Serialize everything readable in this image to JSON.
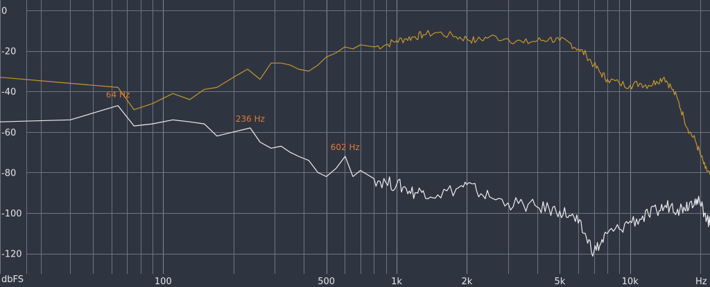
{
  "chart_data": {
    "type": "line",
    "title": "",
    "xlabel": "Hz",
    "ylabel": "dbFS",
    "x_scale": "log",
    "xlim": [
      20,
      22000
    ],
    "ylim": [
      -130,
      0
    ],
    "grid": true,
    "y_ticks": [
      0,
      -20,
      -40,
      -60,
      -80,
      -100,
      -120
    ],
    "x_tick_labels": [
      {
        "value": 100,
        "label": "100"
      },
      {
        "value": 500,
        "label": "500"
      },
      {
        "value": 1000,
        "label": "1k"
      },
      {
        "value": 2000,
        "label": "2k"
      },
      {
        "value": 5000,
        "label": "5k"
      },
      {
        "value": 10000,
        "label": "10k"
      }
    ],
    "colors": {
      "background": "#2f3540",
      "grid": "#6f7680",
      "text": "#e3e6ea",
      "peak_label": "#e0793a"
    },
    "annotations": [
      {
        "text": "64 Hz",
        "x": 64,
        "y": -43
      },
      {
        "text": "236 Hz",
        "x": 236,
        "y": -55
      },
      {
        "text": "602 Hz",
        "x": 602,
        "y": -69
      }
    ],
    "series": [
      {
        "color": "#c8972f",
        "x": [
          20,
          40,
          64,
          75,
          90,
          110,
          130,
          150,
          170,
          200,
          230,
          260,
          290,
          320,
          350,
          380,
          420,
          460,
          500,
          550,
          600,
          650,
          700,
          800,
          900,
          1000,
          1100,
          1200,
          1300,
          1500,
          1800,
          2000,
          2200,
          2500,
          3000,
          3500,
          4000,
          4500,
          5000,
          5500,
          6000,
          6500,
          7000,
          7500,
          8000,
          9000,
          10000,
          11000,
          12000,
          13000,
          14000,
          15000,
          16000,
          17000,
          18000,
          19000,
          20000,
          21000,
          22000
        ],
        "y": [
          -33,
          -36,
          -38,
          -49,
          -46,
          -41,
          -44,
          -39,
          -38,
          -33,
          -29,
          -34,
          -26,
          -26,
          -27,
          -29,
          -30,
          -27,
          -23,
          -21,
          -18,
          -19,
          -17,
          -18,
          -17,
          -15,
          -14,
          -13,
          -12,
          -11,
          -13,
          -14,
          -15,
          -13,
          -14,
          -16,
          -15,
          -14,
          -15,
          -16,
          -19,
          -22,
          -27,
          -31,
          -34,
          -36,
          -37,
          -36,
          -37,
          -35,
          -33,
          -38,
          -44,
          -53,
          -60,
          -64,
          -71,
          -78,
          -81
        ]
      },
      {
        "color": "#eef0f2",
        "x": [
          20,
          40,
          64,
          75,
          90,
          110,
          130,
          150,
          170,
          200,
          236,
          260,
          290,
          320,
          350,
          380,
          420,
          460,
          500,
          550,
          602,
          650,
          700,
          800,
          900,
          1000,
          1100,
          1200,
          1300,
          1500,
          1800,
          2000,
          2200,
          2500,
          3000,
          3500,
          4000,
          4500,
          5000,
          5500,
          6000,
          6500,
          7000,
          7500,
          8000,
          9000,
          10000,
          11000,
          12000,
          13000,
          14000,
          15000,
          16000,
          17000,
          18000,
          19000,
          20000,
          21000,
          22000
        ],
        "y": [
          -55,
          -54,
          -47,
          -57,
          -56,
          -54,
          -55,
          -56,
          -62,
          -60,
          -58,
          -65,
          -68,
          -67,
          -70,
          -72,
          -74,
          -80,
          -82,
          -78,
          -72,
          -82,
          -79,
          -83,
          -85,
          -86,
          -88,
          -90,
          -89,
          -91,
          -88,
          -86,
          -89,
          -92,
          -95,
          -96,
          -97,
          -98,
          -99,
          -101,
          -105,
          -112,
          -119,
          -115,
          -110,
          -108,
          -104,
          -103,
          -101,
          -99,
          -97,
          -96,
          -98,
          -97,
          -95,
          -93,
          -96,
          -100,
          -106
        ]
      }
    ]
  }
}
